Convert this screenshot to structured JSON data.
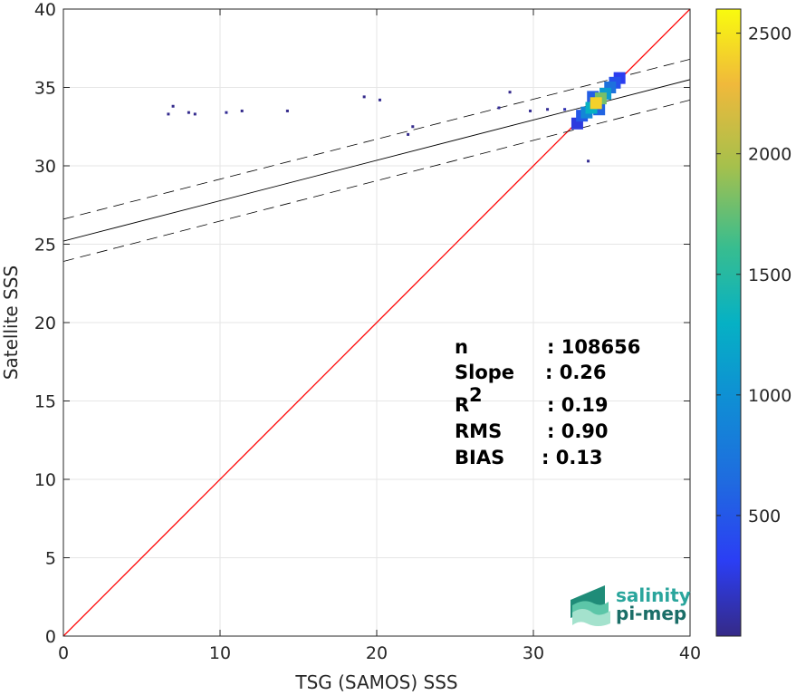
{
  "chart_data": {
    "type": "heatmap",
    "xlabel": "TSG (SAMOS) SSS",
    "ylabel": "Satellite SSS",
    "xlim": [
      0,
      40
    ],
    "ylim": [
      0,
      40
    ],
    "xticks": [
      0,
      10,
      20,
      30,
      40
    ],
    "yticks": [
      0,
      5,
      10,
      15,
      20,
      25,
      30,
      35,
      40
    ],
    "grid": true,
    "identity_line": {
      "from": [
        0,
        0
      ],
      "to": [
        40,
        40
      ],
      "color": "#ff0000"
    },
    "fit_line": {
      "x": [
        0,
        40
      ],
      "y": [
        25.2,
        35.5
      ],
      "color": "#000000"
    },
    "fit_upper": {
      "x": [
        0,
        40
      ],
      "y": [
        26.6,
        36.8
      ],
      "style": "dashed"
    },
    "fit_lower": {
      "x": [
        0,
        40
      ],
      "y": [
        23.9,
        34.2
      ],
      "style": "dashed"
    },
    "colorbar": {
      "range": [
        0,
        2600
      ],
      "ticks": [
        500,
        1000,
        1500,
        2000,
        2500
      ],
      "colormap": "parula"
    },
    "density_points": [
      {
        "x": 34.0,
        "y": 34.0,
        "count": 2400
      },
      {
        "x": 34.3,
        "y": 34.3,
        "count": 1800
      },
      {
        "x": 33.7,
        "y": 33.7,
        "count": 1300
      },
      {
        "x": 34.6,
        "y": 34.6,
        "count": 1100
      },
      {
        "x": 33.4,
        "y": 33.4,
        "count": 900
      },
      {
        "x": 34.9,
        "y": 35.0,
        "count": 700
      },
      {
        "x": 33.1,
        "y": 33.2,
        "count": 500
      },
      {
        "x": 35.2,
        "y": 35.3,
        "count": 450
      },
      {
        "x": 34.2,
        "y": 33.6,
        "count": 600
      },
      {
        "x": 33.8,
        "y": 34.4,
        "count": 550
      },
      {
        "x": 35.5,
        "y": 35.6,
        "count": 300
      },
      {
        "x": 32.8,
        "y": 32.7,
        "count": 250
      },
      {
        "x": 6.7,
        "y": 33.3,
        "count": 20
      },
      {
        "x": 7.0,
        "y": 33.8,
        "count": 15
      },
      {
        "x": 8.0,
        "y": 33.4,
        "count": 20
      },
      {
        "x": 8.4,
        "y": 33.3,
        "count": 20
      },
      {
        "x": 10.4,
        "y": 33.4,
        "count": 40
      },
      {
        "x": 11.4,
        "y": 33.5,
        "count": 15
      },
      {
        "x": 14.3,
        "y": 33.5,
        "count": 15
      },
      {
        "x": 19.2,
        "y": 34.4,
        "count": 15
      },
      {
        "x": 20.2,
        "y": 34.2,
        "count": 25
      },
      {
        "x": 22.3,
        "y": 32.5,
        "count": 15
      },
      {
        "x": 22.0,
        "y": 32.0,
        "count": 15
      },
      {
        "x": 27.8,
        "y": 33.7,
        "count": 40
      },
      {
        "x": 28.5,
        "y": 34.7,
        "count": 15
      },
      {
        "x": 29.8,
        "y": 33.5,
        "count": 30
      },
      {
        "x": 30.9,
        "y": 33.6,
        "count": 40
      },
      {
        "x": 32.0,
        "y": 33.6,
        "count": 120
      },
      {
        "x": 33.5,
        "y": 30.3,
        "count": 30
      }
    ]
  },
  "stats": {
    "n_label": "n",
    "n_value": ": 108656",
    "slope_label": "Slope",
    "slope_value": ": 0.26",
    "r2_label": "R",
    "r2_sup": "2",
    "r2_value": ": 0.19",
    "rms_label": "RMS",
    "rms_value": ": 0.90",
    "bias_label": "BIAS",
    "bias_value": ": 0.13"
  },
  "logo": {
    "line1": "salinity",
    "line2": "pi-mep"
  }
}
